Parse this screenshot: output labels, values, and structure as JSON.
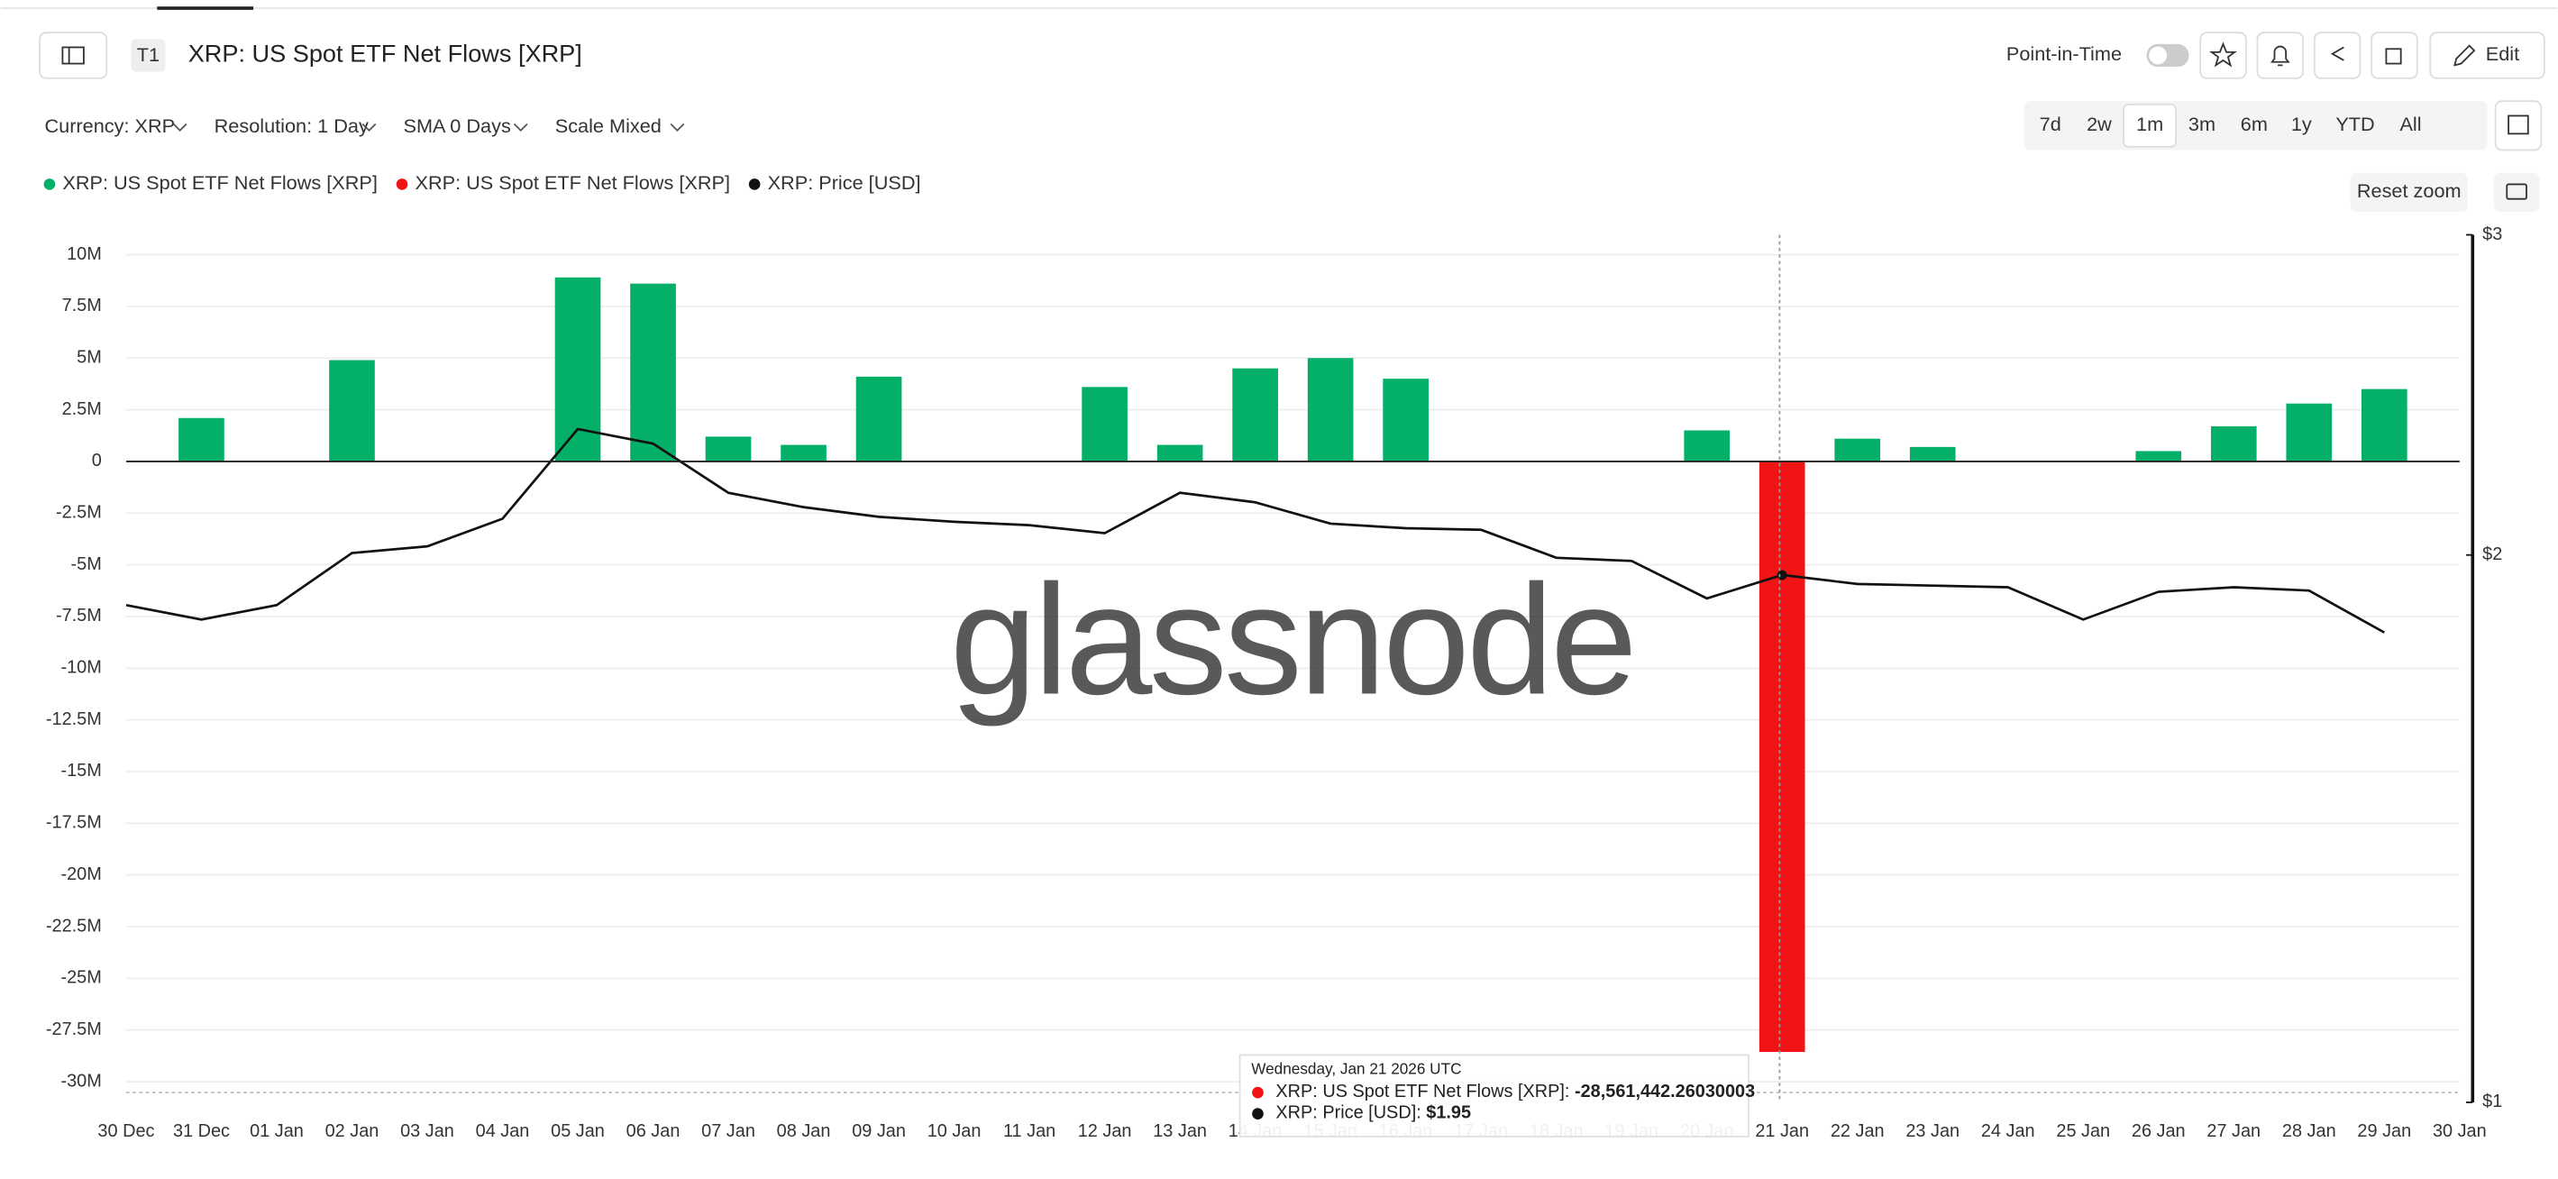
{
  "header": {
    "tag": "T1",
    "title": "XRP: US Spot ETF Net Flows [XRP]",
    "point_in_time": "Point-in-Time",
    "edit": "Edit"
  },
  "controls": {
    "currency": "Currency: XRP",
    "resolution": "Resolution: 1 Day",
    "sma": "SMA 0 Days",
    "scale": "Scale Mixed",
    "ranges": [
      "7d",
      "2w",
      "1m",
      "3m",
      "6m",
      "1y",
      "YTD",
      "All"
    ],
    "active_range": "1m",
    "reset_zoom": "Reset zoom"
  },
  "watermark": "glassnode",
  "tooltip": {
    "date": "Wednesday, Jan 21 2026 UTC",
    "flow_label": "XRP: US Spot ETF Net Flows [XRP]:",
    "flow_value": "-28,561,442.26030003",
    "price_label": "XRP: Price [USD]:",
    "price_value": "$1.95"
  },
  "chart_data": {
    "type": "bar",
    "categories": [
      "30 Dec",
      "31 Dec",
      "01 Jan",
      "02 Jan",
      "03 Jan",
      "04 Jan",
      "05 Jan",
      "06 Jan",
      "07 Jan",
      "08 Jan",
      "09 Jan",
      "10 Jan",
      "11 Jan",
      "12 Jan",
      "13 Jan",
      "14 Jan",
      "15 Jan",
      "16 Jan",
      "17 Jan",
      "18 Jan",
      "19 Jan",
      "20 Jan",
      "21 Jan",
      "22 Jan",
      "23 Jan",
      "24 Jan",
      "25 Jan",
      "26 Jan",
      "27 Jan",
      "28 Jan",
      "29 Jan",
      "30 Jan"
    ],
    "series": [
      {
        "name": "XRP: US Spot ETF Net Flows [XRP]",
        "color": "#04b068",
        "type": "bar",
        "values": [
          null,
          2100000,
          0,
          4900000,
          0,
          0,
          8900000,
          8600000,
          1200000,
          800000,
          4100000,
          0,
          0,
          3600000,
          800000,
          4500000,
          5000000,
          4000000,
          0,
          0,
          0,
          1500000,
          null,
          1100000,
          700000,
          0,
          0,
          500000,
          1700000,
          2800000,
          3500000,
          null
        ]
      },
      {
        "name": "XRP: US Spot ETF Net Flows [XRP]",
        "color": "#f01414",
        "type": "bar",
        "values": [
          null,
          null,
          null,
          null,
          null,
          null,
          null,
          null,
          null,
          null,
          null,
          null,
          null,
          null,
          null,
          null,
          null,
          null,
          null,
          null,
          null,
          null,
          -28561442.26030003,
          null,
          null,
          null,
          null,
          null,
          null,
          null,
          null,
          null
        ]
      },
      {
        "name": "XRP: Price [USD]",
        "color": "#111111",
        "type": "line",
        "axis": "y2",
        "values": [
          1.877,
          1.843,
          1.877,
          2.005,
          2.022,
          2.094,
          2.346,
          2.303,
          2.164,
          2.125,
          2.099,
          2.086,
          2.077,
          2.056,
          2.164,
          2.138,
          2.081,
          2.069,
          2.065,
          1.993,
          1.985,
          1.893,
          1.95,
          1.928,
          1.924,
          1.92,
          1.843,
          1.909,
          1.92,
          1.912,
          1.813,
          null
        ]
      }
    ],
    "ylim": [
      -31000000,
      10960000
    ],
    "yticks": [
      {
        "value": 10000000,
        "label": "10M"
      },
      {
        "value": 7500000,
        "label": "7.5M"
      },
      {
        "value": 5000000,
        "label": "5M"
      },
      {
        "value": 2500000,
        "label": "2.5M"
      },
      0,
      {
        "value": -2500000,
        "label": "-2.5M"
      },
      {
        "value": -5000000,
        "label": "-5M"
      },
      {
        "value": -7500000,
        "label": "-7.5M"
      },
      {
        "value": -10000000,
        "label": "-10M"
      },
      {
        "value": -12500000,
        "label": "-12.5M"
      },
      {
        "value": -15000000,
        "label": "-15M"
      },
      {
        "value": -17500000,
        "label": "-17.5M"
      },
      {
        "value": -20000000,
        "label": "-20M"
      },
      {
        "value": -22500000,
        "label": "-22.5M"
      },
      {
        "value": -25000000,
        "label": "-25M"
      },
      {
        "value": -27500000,
        "label": "-27.5M"
      },
      {
        "value": -30000000,
        "label": "-30M"
      }
    ],
    "y2lim": [
      1,
      3
    ],
    "y2ticks": [
      {
        "value": 3,
        "label": "$3"
      },
      {
        "value": 2,
        "label": "$2"
      },
      {
        "value": 1,
        "label": "$1"
      }
    ],
    "y2_scale": "log",
    "grid": true
  }
}
